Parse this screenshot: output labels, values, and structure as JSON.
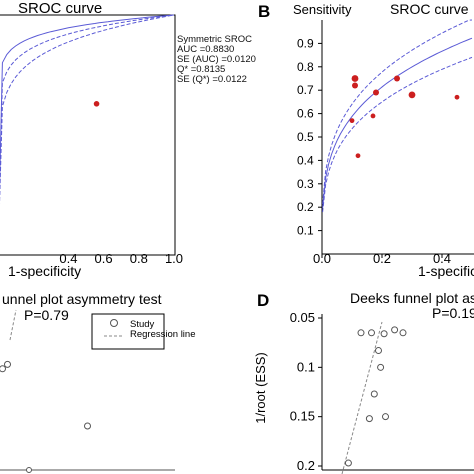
{
  "figure": {
    "panel_labels": [
      "B",
      "D"
    ]
  },
  "colors": {
    "curve": "#5b5bd6",
    "point_red": "#cc1f1f",
    "axis": "#000000",
    "regression": "#888888"
  },
  "chart_data": [
    {
      "type": "scatter",
      "panel": "A",
      "title": "SROC curve",
      "xlabel": "1-specificity",
      "ylabel": "",
      "xlim": [
        0.0,
        1.0
      ],
      "ylim": [
        0.0,
        1.0
      ],
      "xticks": [
        "0.4",
        "0.6",
        "0.8",
        "1.0"
      ],
      "legend_lines": [
        "Symmetric SROC",
        "AUC =0.8830",
        "SE (AUC) =0.0120",
        "Q* =0.8135",
        "SE (Q*) =0.0122"
      ],
      "points": [
        {
          "x": 0.56,
          "y": 0.63
        }
      ]
    },
    {
      "type": "scatter",
      "panel": "B",
      "title": "SROC curve",
      "xlabel": "1-specificity",
      "ylabel": "Sensitivity",
      "xlim": [
        0.0,
        0.5
      ],
      "ylim": [
        0.0,
        1.0
      ],
      "xticks": [
        "0.0",
        "0.2",
        "0.4"
      ],
      "yticks": [
        "0.1",
        "0.2",
        "0.3",
        "0.4",
        "0.5",
        "0.6",
        "0.7",
        "0.8",
        "0.9"
      ],
      "points": [
        {
          "x": 0.1,
          "y": 0.57,
          "size": 2
        },
        {
          "x": 0.11,
          "y": 0.75,
          "size": 4
        },
        {
          "x": 0.11,
          "y": 0.72,
          "size": 3
        },
        {
          "x": 0.12,
          "y": 0.42,
          "size": 2
        },
        {
          "x": 0.17,
          "y": 0.59,
          "size": 2
        },
        {
          "x": 0.18,
          "y": 0.69,
          "size": 3
        },
        {
          "x": 0.25,
          "y": 0.75,
          "size": 3
        },
        {
          "x": 0.3,
          "y": 0.68,
          "size": 4
        },
        {
          "x": 0.45,
          "y": 0.67,
          "size": 2
        }
      ]
    },
    {
      "type": "scatter",
      "panel": "C",
      "title": "unnel plot asymmetry test",
      "subtitle": "P=0.79",
      "legend": [
        "Study",
        "Regression line"
      ],
      "points": [
        {
          "x": 0.02,
          "y": 0.92
        },
        {
          "x": 0.06,
          "y": 0.96
        },
        {
          "x": 0.7,
          "y": 0.4
        }
      ]
    },
    {
      "type": "scatter",
      "panel": "D",
      "title": "Deeks funnel plot as",
      "subtitle": "P=0.19",
      "ylabel": "1/root (ESS)",
      "ylim": [
        0.05,
        0.2
      ],
      "yticks": [
        "0.05",
        "0.1",
        "0.15",
        "0.2"
      ],
      "points": [
        {
          "x": 0.3,
          "y": 0.065
        },
        {
          "x": 0.45,
          "y": 0.065
        },
        {
          "x": 0.55,
          "y": 0.083
        },
        {
          "x": 0.63,
          "y": 0.066
        },
        {
          "x": 0.78,
          "y": 0.062
        },
        {
          "x": 0.9,
          "y": 0.065
        },
        {
          "x": 0.58,
          "y": 0.1
        },
        {
          "x": 0.49,
          "y": 0.127
        },
        {
          "x": 0.42,
          "y": 0.152
        },
        {
          "x": 0.65,
          "y": 0.15
        },
        {
          "x": 0.12,
          "y": 0.197
        }
      ]
    }
  ]
}
